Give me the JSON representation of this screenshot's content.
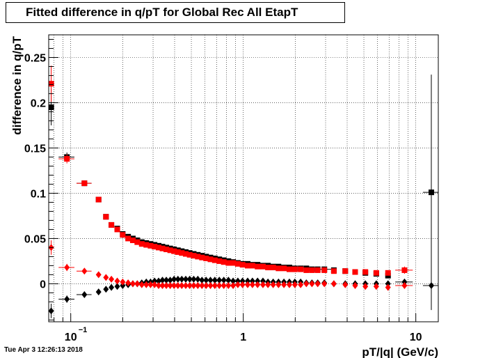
{
  "timestamp": "Tue Apr  3 12:26:13 2018",
  "chart_data": {
    "type": "scatter",
    "title": "Fitted difference in q/pT for Global Rec All EtapT",
    "xlabel": "pT/|q| (GeV/c)",
    "ylabel": "difference in q/pT",
    "x_scale": "log",
    "xlim": [
      0.0745,
      13.5
    ],
    "ylim": [
      -0.042,
      0.275
    ],
    "grid": true,
    "x_ticks": [
      {
        "value": 0.1,
        "label": "10",
        "sup": "−1"
      },
      {
        "value": 1,
        "label": "1"
      },
      {
        "value": 10,
        "label": "10"
      }
    ],
    "y_ticks": [
      {
        "value": 0,
        "label": "0"
      },
      {
        "value": 0.05,
        "label": "0.05"
      },
      {
        "value": 0.1,
        "label": "0.1"
      },
      {
        "value": 0.15,
        "label": "0.15"
      },
      {
        "value": 0.2,
        "label": "0.2"
      },
      {
        "value": 0.25,
        "label": "0.25"
      }
    ],
    "series": [
      {
        "color": "#000000",
        "marker": "square",
        "x": [
          0.077,
          0.095,
          0.12,
          0.145,
          0.16,
          0.172,
          0.186,
          0.2,
          0.215,
          0.229,
          0.243,
          0.258,
          0.274,
          0.29,
          0.306,
          0.323,
          0.34,
          0.358,
          0.377,
          0.397,
          0.418,
          0.44,
          0.464,
          0.489,
          0.516,
          0.545,
          0.576,
          0.609,
          0.645,
          0.684,
          0.726,
          0.771,
          0.82,
          0.873,
          0.93,
          0.99,
          1.06,
          1.13,
          1.21,
          1.3,
          1.39,
          1.49,
          1.6,
          1.72,
          1.85,
          1.99,
          2.15,
          2.32,
          2.5,
          2.7,
          2.95,
          3.35,
          3.9,
          4.45,
          5.1,
          5.9,
          6.9,
          12.3
        ],
        "y": [
          0.195,
          0.14,
          0.111,
          0.093,
          0.074,
          0.065,
          0.061,
          0.055,
          0.052,
          0.05,
          0.048,
          0.046,
          0.045,
          0.044,
          0.043,
          0.042,
          0.041,
          0.04,
          0.039,
          0.038,
          0.037,
          0.036,
          0.035,
          0.034,
          0.033,
          0.032,
          0.031,
          0.03,
          0.029,
          0.028,
          0.027,
          0.026,
          0.025,
          0.024,
          0.023,
          0.022,
          0.022,
          0.021,
          0.021,
          0.02,
          0.02,
          0.019,
          0.019,
          0.018,
          0.018,
          0.017,
          0.017,
          0.017,
          0.016,
          0.016,
          0.016,
          0.015,
          0.014,
          0.013,
          0.012,
          0.011,
          0.009,
          0.101
        ],
        "xerr": [
          0.003,
          0.01,
          0.012,
          0.0,
          0.0,
          0.0,
          0.0,
          0.0,
          0.0,
          0.0,
          0.0,
          0.0,
          0.0,
          0.0,
          0.0,
          0.0,
          0.0,
          0.0,
          0.0,
          0.0,
          0.0,
          0.0,
          0.0,
          0.0,
          0.0,
          0.0,
          0.0,
          0.0,
          0.0,
          0.0,
          0.0,
          0.0,
          0.0,
          0.0,
          0.0,
          0.0,
          0.0,
          0.0,
          0.0,
          0.0,
          0.0,
          0.0,
          0.0,
          0.0,
          0.0,
          0.0,
          0.0,
          0.0,
          0.0,
          0.0,
          0.3,
          0.0,
          0.0,
          0.0,
          0.0,
          0.0,
          0.0,
          1.3
        ],
        "yerr": [
          0.02,
          0.005,
          0.003,
          0.0,
          0.0,
          0.0,
          0.0,
          0.0,
          0.0,
          0.0,
          0.0,
          0.0,
          0.0,
          0.0,
          0.0,
          0.0,
          0.0,
          0.0,
          0.0,
          0.0,
          0.0,
          0.0,
          0.0,
          0.0,
          0.0,
          0.0,
          0.0,
          0.0,
          0.0,
          0.0,
          0.0,
          0.0,
          0.0,
          0.0,
          0.0,
          0.0,
          0.0,
          0.0,
          0.0,
          0.0,
          0.0,
          0.0,
          0.0,
          0.0,
          0.0,
          0.0,
          0.0,
          0.0,
          0.0,
          0.0,
          0.0,
          0.0,
          0.0,
          0.0,
          0.0,
          0.0,
          0.0,
          0.13
        ]
      },
      {
        "color": "#ff0000",
        "marker": "square",
        "x": [
          0.077,
          0.095,
          0.12,
          0.145,
          0.16,
          0.172,
          0.186,
          0.2,
          0.215,
          0.229,
          0.243,
          0.258,
          0.274,
          0.29,
          0.306,
          0.323,
          0.34,
          0.358,
          0.377,
          0.397,
          0.418,
          0.44,
          0.464,
          0.489,
          0.516,
          0.545,
          0.576,
          0.609,
          0.645,
          0.684,
          0.726,
          0.771,
          0.82,
          0.873,
          0.93,
          0.99,
          1.06,
          1.13,
          1.21,
          1.3,
          1.39,
          1.49,
          1.6,
          1.72,
          1.85,
          1.99,
          2.15,
          2.32,
          2.5,
          2.7,
          2.95,
          3.35,
          3.9,
          4.45,
          5.1,
          5.9,
          6.9,
          8.6
        ],
        "y": [
          0.221,
          0.138,
          0.111,
          0.093,
          0.074,
          0.065,
          0.06,
          0.054,
          0.05,
          0.048,
          0.046,
          0.044,
          0.043,
          0.042,
          0.041,
          0.04,
          0.039,
          0.038,
          0.037,
          0.036,
          0.035,
          0.034,
          0.033,
          0.032,
          0.031,
          0.03,
          0.029,
          0.028,
          0.027,
          0.026,
          0.025,
          0.024,
          0.023,
          0.023,
          0.022,
          0.021,
          0.02,
          0.02,
          0.019,
          0.019,
          0.018,
          0.018,
          0.017,
          0.017,
          0.016,
          0.016,
          0.016,
          0.015,
          0.015,
          0.015,
          0.015,
          0.014,
          0.014,
          0.013,
          0.013,
          0.012,
          0.012,
          0.015
        ],
        "xerr": [
          0.003,
          0.01,
          0.012,
          0.0,
          0.0,
          0.0,
          0.0,
          0.0,
          0.0,
          0.0,
          0.0,
          0.0,
          0.0,
          0.0,
          0.0,
          0.0,
          0.0,
          0.0,
          0.0,
          0.0,
          0.0,
          0.0,
          0.0,
          0.0,
          0.0,
          0.0,
          0.0,
          0.0,
          0.0,
          0.0,
          0.0,
          0.0,
          0.0,
          0.0,
          0.0,
          0.0,
          0.0,
          0.0,
          0.0,
          0.0,
          0.0,
          0.0,
          0.0,
          0.0,
          0.0,
          0.0,
          0.0,
          0.0,
          0.0,
          0.0,
          0.0,
          0.0,
          0.0,
          0.0,
          0.0,
          0.0,
          0.0,
          1.0
        ],
        "yerr": [
          0.02,
          0.005,
          0.003,
          0.0,
          0.0,
          0.0,
          0.0,
          0.0,
          0.0,
          0.0,
          0.0,
          0.0,
          0.0,
          0.0,
          0.0,
          0.0,
          0.0,
          0.0,
          0.0,
          0.0,
          0.0,
          0.0,
          0.0,
          0.0,
          0.0,
          0.0,
          0.0,
          0.0,
          0.0,
          0.0,
          0.0,
          0.0,
          0.0,
          0.0,
          0.0,
          0.0,
          0.0,
          0.0,
          0.0,
          0.0,
          0.0,
          0.0,
          0.0,
          0.0,
          0.0,
          0.0,
          0.0,
          0.0,
          0.0,
          0.0,
          0.0,
          0.0,
          0.0,
          0.0,
          0.0,
          0.0,
          0.0,
          0.004
        ]
      },
      {
        "color": "#000000",
        "marker": "diamond",
        "x": [
          0.077,
          0.095,
          0.12,
          0.145,
          0.16,
          0.172,
          0.186,
          0.2,
          0.215,
          0.229,
          0.243,
          0.258,
          0.274,
          0.29,
          0.306,
          0.323,
          0.34,
          0.358,
          0.377,
          0.397,
          0.418,
          0.44,
          0.464,
          0.489,
          0.516,
          0.545,
          0.576,
          0.609,
          0.645,
          0.684,
          0.726,
          0.771,
          0.82,
          0.873,
          0.93,
          0.99,
          1.06,
          1.13,
          1.21,
          1.3,
          1.39,
          1.49,
          1.6,
          1.72,
          1.85,
          1.99,
          2.15,
          2.32,
          2.5,
          2.7,
          2.95,
          3.35,
          3.9,
          4.45,
          5.1,
          5.9,
          6.9,
          8.6,
          12.3
        ],
        "y": [
          -0.03,
          -0.017,
          -0.012,
          -0.009,
          -0.006,
          -0.004,
          -0.003,
          -0.002,
          -0.001,
          0.0,
          0.0,
          0.001,
          0.002,
          0.002,
          0.003,
          0.003,
          0.004,
          0.004,
          0.004,
          0.005,
          0.005,
          0.005,
          0.005,
          0.005,
          0.005,
          0.005,
          0.004,
          0.004,
          0.004,
          0.004,
          0.004,
          0.004,
          0.004,
          0.003,
          0.003,
          0.003,
          0.003,
          0.003,
          0.003,
          0.003,
          0.002,
          0.002,
          0.002,
          0.002,
          0.002,
          0.002,
          0.002,
          0.001,
          0.001,
          0.001,
          0.001,
          0.0,
          0.0,
          0.0,
          0.0,
          0.0,
          0.0,
          0.002,
          -0.002
        ],
        "xerr": [
          0.003,
          0.01,
          0.012,
          0.0,
          0.0,
          0.0,
          0.0,
          0.0,
          0.0,
          0.0,
          0.0,
          0.0,
          0.0,
          0.0,
          0.0,
          0.0,
          0.0,
          0.0,
          0.0,
          0.0,
          0.0,
          0.0,
          0.0,
          0.0,
          0.0,
          0.0,
          0.0,
          0.0,
          0.0,
          0.0,
          0.0,
          0.0,
          0.0,
          0.0,
          0.0,
          0.0,
          0.0,
          0.0,
          0.0,
          0.0,
          0.0,
          0.0,
          0.0,
          0.0,
          0.0,
          0.0,
          0.0,
          0.0,
          0.0,
          0.0,
          0.0,
          0.0,
          0.0,
          0.0,
          0.0,
          0.0,
          0.0,
          1.0,
          1.3
        ],
        "yerr": [
          0.008,
          0.004,
          0.002,
          0.0,
          0.0,
          0.0,
          0.0,
          0.0,
          0.0,
          0.0,
          0.0,
          0.0,
          0.0,
          0.0,
          0.0,
          0.0,
          0.0,
          0.0,
          0.0,
          0.0,
          0.0,
          0.0,
          0.0,
          0.0,
          0.0,
          0.0,
          0.0,
          0.0,
          0.0,
          0.0,
          0.0,
          0.0,
          0.0,
          0.0,
          0.0,
          0.0,
          0.0,
          0.0,
          0.0,
          0.0,
          0.0,
          0.0,
          0.0,
          0.0,
          0.0,
          0.0,
          0.0,
          0.0,
          0.0,
          0.0,
          0.0,
          0.0,
          0.0,
          0.0,
          0.0,
          0.0,
          0.0,
          0.0,
          0.0
        ]
      },
      {
        "color": "#ff0000",
        "marker": "diamond",
        "x": [
          0.077,
          0.095,
          0.12,
          0.145,
          0.16,
          0.172,
          0.186,
          0.2,
          0.215,
          0.229,
          0.243,
          0.258,
          0.274,
          0.29,
          0.306,
          0.323,
          0.34,
          0.358,
          0.377,
          0.397,
          0.418,
          0.44,
          0.464,
          0.489,
          0.516,
          0.545,
          0.576,
          0.609,
          0.645,
          0.684,
          0.726,
          0.771,
          0.82,
          0.873,
          0.93,
          0.99,
          1.06,
          1.13,
          1.21,
          1.3,
          1.39,
          1.49,
          1.6,
          1.72,
          1.85,
          1.99,
          2.15,
          2.32,
          2.5,
          2.7,
          2.95,
          3.35,
          3.9,
          4.45,
          5.1,
          5.9,
          6.9,
          8.6
        ],
        "y": [
          0.04,
          0.018,
          0.014,
          0.01,
          0.007,
          0.005,
          0.003,
          0.002,
          0.001,
          0.0,
          0.0,
          -0.001,
          -0.001,
          -0.001,
          -0.001,
          -0.002,
          -0.002,
          -0.002,
          -0.002,
          -0.002,
          -0.002,
          -0.002,
          -0.002,
          -0.002,
          -0.002,
          -0.002,
          -0.002,
          -0.002,
          -0.002,
          -0.002,
          -0.002,
          -0.002,
          -0.002,
          -0.002,
          -0.001,
          -0.001,
          -0.001,
          -0.001,
          -0.001,
          -0.001,
          -0.001,
          -0.001,
          -0.001,
          -0.001,
          -0.001,
          -0.001,
          -0.001,
          0.0,
          0.0,
          0.0,
          0.0,
          0.0,
          -0.001,
          -0.002,
          -0.003,
          -0.003,
          -0.004,
          -0.002
        ],
        "xerr": [
          0.003,
          0.01,
          0.012,
          0.0,
          0.0,
          0.0,
          0.0,
          0.0,
          0.0,
          0.0,
          0.0,
          0.0,
          0.0,
          0.0,
          0.0,
          0.0,
          0.0,
          0.0,
          0.0,
          0.0,
          0.0,
          0.0,
          0.0,
          0.0,
          0.0,
          0.0,
          0.0,
          0.0,
          0.0,
          0.0,
          0.0,
          0.0,
          0.0,
          0.0,
          0.0,
          0.0,
          0.0,
          0.0,
          0.0,
          0.0,
          0.0,
          0.0,
          0.0,
          0.0,
          0.0,
          0.0,
          0.0,
          0.0,
          0.0,
          0.0,
          0.0,
          0.0,
          0.0,
          0.0,
          0.0,
          0.0,
          0.0,
          1.0
        ],
        "yerr": [
          0.008,
          0.004,
          0.002,
          0.0,
          0.0,
          0.0,
          0.0,
          0.0,
          0.0,
          0.0,
          0.0,
          0.0,
          0.0,
          0.0,
          0.0,
          0.0,
          0.0,
          0.0,
          0.0,
          0.0,
          0.0,
          0.0,
          0.0,
          0.0,
          0.0,
          0.0,
          0.0,
          0.0,
          0.0,
          0.0,
          0.0,
          0.0,
          0.0,
          0.0,
          0.0,
          0.0,
          0.0,
          0.0,
          0.0,
          0.0,
          0.0,
          0.0,
          0.0,
          0.0,
          0.0,
          0.0,
          0.0,
          0.0,
          0.0,
          0.0,
          0.0,
          0.0,
          0.0,
          0.0,
          0.0,
          0.0,
          0.0,
          0.0
        ]
      }
    ]
  }
}
